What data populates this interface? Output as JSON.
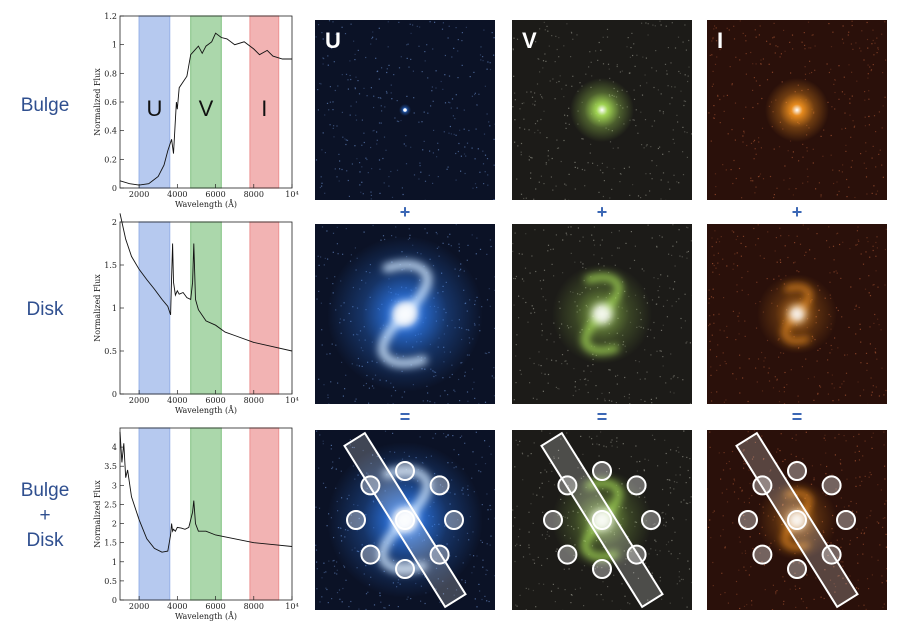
{
  "rows": [
    {
      "label_lines": [
        "Bulge"
      ]
    },
    {
      "label_lines": [
        "Disk"
      ]
    },
    {
      "label_lines": [
        "Bulge",
        "+",
        "Disk"
      ]
    }
  ],
  "columns": [
    {
      "letter": "U",
      "color": "#2e7cf0"
    },
    {
      "letter": "V",
      "color": "#a6dc55"
    },
    {
      "letter": "I",
      "color": "#f0901e"
    }
  ],
  "operators": {
    "plus": "+",
    "equals": "="
  },
  "axis": {
    "xlabel": "Wavelength (Å)",
    "ylabel": "Normalized Flux",
    "x_ticks": [
      "2000",
      "4000",
      "6000",
      "8000",
      "10⁴"
    ]
  },
  "chart_data": [
    {
      "type": "line",
      "series": [
        {
          "x": [
            1000,
            1500,
            2000,
            2500,
            2800,
            3000,
            3300,
            3500,
            3700,
            3800,
            3950,
            4000,
            4100,
            4300,
            4500,
            4700,
            4900,
            5100,
            5300,
            5500,
            5800,
            6000,
            6300,
            6600,
            7000,
            7500,
            8000,
            8300,
            8700,
            9000,
            9500,
            10000
          ],
          "y": [
            0.05,
            0.03,
            0.02,
            0.03,
            0.06,
            0.08,
            0.16,
            0.26,
            0.34,
            0.24,
            0.6,
            0.55,
            0.7,
            0.74,
            0.78,
            0.93,
            0.96,
            0.99,
            0.94,
            0.99,
            1.02,
            1.08,
            1.05,
            1.04,
            1.0,
            1.02,
            0.97,
            0.93,
            0.96,
            0.92,
            0.9,
            0.9
          ]
        }
      ],
      "xlim": [
        1000,
        10000
      ],
      "ylim": [
        0,
        1.2
      ],
      "y_ticks": [
        "0",
        "0.2",
        "0.4",
        "0.6",
        "0.8",
        "1",
        "1.2"
      ],
      "bands": [
        {
          "label": "U",
          "x": [
            2000,
            3600
          ],
          "color": "#9eb7ea"
        },
        {
          "label": "V",
          "x": [
            4700,
            6300
          ],
          "color": "#8fc98f"
        },
        {
          "label": "I",
          "x": [
            7800,
            9300
          ],
          "color": "#ee9a9a"
        }
      ]
    },
    {
      "type": "line",
      "series": [
        {
          "x": [
            1000,
            1300,
            1600,
            2000,
            2400,
            2800,
            3200,
            3500,
            3650,
            3700,
            3750,
            3800,
            3900,
            4000,
            4100,
            4300,
            4500,
            4700,
            4800,
            4860,
            4950,
            5100,
            5500,
            6000,
            6500,
            7000,
            8000,
            9000,
            10000
          ],
          "y": [
            2.1,
            1.8,
            1.6,
            1.45,
            1.33,
            1.22,
            1.1,
            1.02,
            0.92,
            1.35,
            1.75,
            1.3,
            1.15,
            1.2,
            1.16,
            1.18,
            1.12,
            1.1,
            1.3,
            1.75,
            1.1,
            0.98,
            0.85,
            0.8,
            0.72,
            0.68,
            0.6,
            0.55,
            0.5
          ]
        }
      ],
      "xlim": [
        1000,
        10000
      ],
      "ylim": [
        0,
        2
      ],
      "y_ticks": [
        "0",
        "0.5",
        "1",
        "1.5",
        "2"
      ],
      "bands": [
        {
          "label": "",
          "x": [
            2000,
            3600
          ],
          "color": "#9eb7ea"
        },
        {
          "label": "",
          "x": [
            4700,
            6300
          ],
          "color": "#8fc98f"
        },
        {
          "label": "",
          "x": [
            7800,
            9300
          ],
          "color": "#ee9a9a"
        }
      ]
    },
    {
      "type": "line",
      "series": [
        {
          "x": [
            1000,
            1100,
            1200,
            1300,
            1400,
            1600,
            2000,
            2400,
            2800,
            3200,
            3500,
            3650,
            3700,
            3750,
            3800,
            3900,
            4000,
            4200,
            4400,
            4600,
            4800,
            4860,
            4950,
            5100,
            5500,
            6000,
            7000,
            8000,
            9000,
            10000
          ],
          "y": [
            4.4,
            3.6,
            4.1,
            3.2,
            3.4,
            2.7,
            2.1,
            1.6,
            1.35,
            1.25,
            1.28,
            1.7,
            2.0,
            1.8,
            1.85,
            1.8,
            1.9,
            1.88,
            1.85,
            1.9,
            2.3,
            2.6,
            2.0,
            1.8,
            1.8,
            1.7,
            1.6,
            1.5,
            1.45,
            1.4
          ]
        }
      ],
      "xlim": [
        1000,
        10000
      ],
      "ylim": [
        0,
        4.5
      ],
      "y_ticks": [
        "0",
        "0.5",
        "1",
        "1.5",
        "2",
        "2.5",
        "3",
        "3.5",
        "4"
      ],
      "bands": [
        {
          "label": "",
          "x": [
            2000,
            3600
          ],
          "color": "#9eb7ea"
        },
        {
          "label": "",
          "x": [
            4700,
            6300
          ],
          "color": "#8fc98f"
        },
        {
          "label": "",
          "x": [
            7800,
            9300
          ],
          "color": "#ee9a9a"
        }
      ]
    }
  ]
}
